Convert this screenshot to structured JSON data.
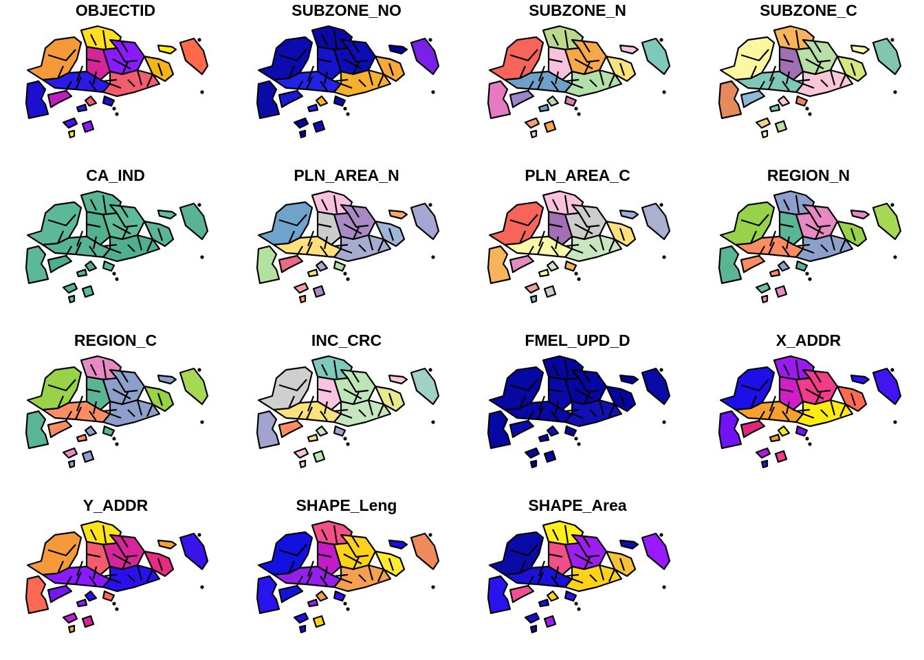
{
  "panels": [
    {
      "title": "OBJECTID",
      "colors": [
        "#f59a3a",
        "#ffdf1f",
        "#d6249a",
        "#8a1aff",
        "#2a1ae8",
        "#f25c6e",
        "#ffef0f",
        "#1c0fd0",
        "#c01fc0",
        "#f5b51a",
        "#ff6a48",
        "#4b10ef"
      ]
    },
    {
      "title": "SUBZONE_NO",
      "colors": [
        "#0b0bb0",
        "#0a09a4",
        "#1414c8",
        "#0d0db6",
        "#2222e6",
        "#f5b12e",
        "#0000a0",
        "#0b0ba8",
        "#1a1ad4",
        "#f9a83a",
        "#7a20e8",
        "#0606a6"
      ]
    },
    {
      "title": "SUBZONE_N",
      "colors": [
        "#f7645a",
        "#bbd88c",
        "#f8c2dc",
        "#f7a84a",
        "#6fa0c9",
        "#b3e0a8",
        "#f9c4e0",
        "#e57ac0",
        "#9b86c8",
        "#fbe27c",
        "#7fc8bc",
        "#f5a07a"
      ]
    },
    {
      "title": "SUBZONE_C",
      "colors": [
        "#fcf7a0",
        "#f7b45a",
        "#a06fb4",
        "#b8e0a6",
        "#7fc8b8",
        "#f9c8d8",
        "#fdfba8",
        "#e58a5a",
        "#8fb8d8",
        "#d6e87c",
        "#81c6b0",
        "#f5d38a"
      ]
    },
    {
      "title": "CA_IND",
      "colors": [
        "#5bb898",
        "#59b594",
        "#52b18f",
        "#5fba9a",
        "#56b393",
        "#4faf8e",
        "#61bd9c",
        "#5bb898",
        "#4db08c",
        "#5ab696",
        "#58b494",
        "#55b391"
      ]
    },
    {
      "title": "PLN_AREA_N",
      "colors": [
        "#6ea4cc",
        "#f8c2dc",
        "#cccccc",
        "#a98ac4",
        "#ffe07a",
        "#a5acd0",
        "#f7a86a",
        "#b4e0a0",
        "#e86a84",
        "#9db6d8",
        "#a6a6d2",
        "#f19ea4"
      ]
    },
    {
      "title": "PLN_AREA_C",
      "colors": [
        "#f7645a",
        "#f8c2dc",
        "#a06fb4",
        "#cccccc",
        "#fcfaa8",
        "#c8e6c0",
        "#9db0d6",
        "#f7b45a",
        "#e58ac0",
        "#ffe07a",
        "#aab0d0",
        "#f19ea4"
      ]
    },
    {
      "title": "REGION_N",
      "colors": [
        "#98d248",
        "#8da0cb",
        "#59b594",
        "#e78ac3",
        "#fc8d62",
        "#8da0cb",
        "#e78ac3",
        "#59b594",
        "#fc8d62",
        "#98d248",
        "#a6d854",
        "#66c2a5"
      ]
    },
    {
      "title": "REGION_C",
      "colors": [
        "#98d248",
        "#e78ac3",
        "#59b594",
        "#8da0cb",
        "#fc8d62",
        "#8da0cb",
        "#8da0cb",
        "#59b594",
        "#fc8d62",
        "#98d248",
        "#a6d854",
        "#e78ac3"
      ]
    },
    {
      "title": "INC_CRC",
      "colors": [
        "#cfcfcf",
        "#7fc8bc",
        "#f9c4e0",
        "#bde5b5",
        "#fbe27c",
        "#c6e6bf",
        "#f9c8d8",
        "#a3a3d0",
        "#fc8d62",
        "#e7e98c",
        "#9fd1c4",
        "#f8c0d0"
      ]
    },
    {
      "title": "FMEL_UPD_D",
      "colors": [
        "#0707a4",
        "#0505a0",
        "#0909a8",
        "#0606a3",
        "#0808a6",
        "#1010b4",
        "#0202a0",
        "#0707a4",
        "#0c0cac",
        "#0505a1",
        "#0a0aa9",
        "#0606a2"
      ]
    },
    {
      "title": "X_ADDR",
      "colors": [
        "#1c0fe8",
        "#9b1af0",
        "#d11ec8",
        "#f03c8a",
        "#f7a030",
        "#ffea12",
        "#2a10f0",
        "#7014f5",
        "#e0287a",
        "#ff6a50",
        "#4015f2",
        "#b618e8"
      ]
    },
    {
      "title": "Y_ADDR",
      "colors": [
        "#f59a3a",
        "#ffe21a",
        "#f25c6e",
        "#d6249a",
        "#8a1aff",
        "#2a10ec",
        "#f7a032",
        "#ff6a55",
        "#7418f2",
        "#e82a80",
        "#3a12ea",
        "#c01fd0"
      ]
    },
    {
      "title": "SHAPE_Leng",
      "colors": [
        "#1111e0",
        "#f24f8a",
        "#c21bc7",
        "#ffd21a",
        "#9420ec",
        "#f5a050",
        "#1a0ee4",
        "#2a14ee",
        "#1412dc",
        "#ffea30",
        "#f08a5a",
        "#1c10e8"
      ]
    },
    {
      "title": "SHAPE_Area",
      "colors": [
        "#0a0aa8",
        "#ffef1a",
        "#f24f8a",
        "#9c1ff0",
        "#1a12d8",
        "#ffd21a",
        "#0d0db0",
        "#2a14ee",
        "#f04e96",
        "#f5c23a",
        "#9a1aff",
        "#1210d6"
      ]
    }
  ]
}
